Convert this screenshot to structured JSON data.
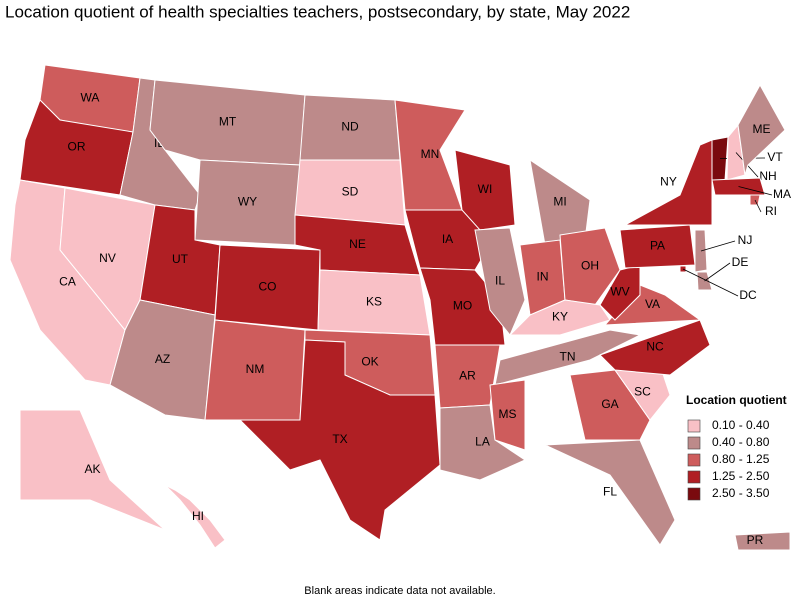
{
  "title": "Location quotient of health specialties teachers, postsecondary, by state, May 2022",
  "legend": {
    "title": "Location quotient",
    "items": [
      {
        "label": "0.10 - 0.40",
        "color": "#f9c0c6"
      },
      {
        "label": "0.40 - 0.80",
        "color": "#bd8a8a"
      },
      {
        "label": "0.80 - 1.25",
        "color": "#ce5c5c"
      },
      {
        "label": "1.25 - 2.50",
        "color": "#b01f24"
      },
      {
        "label": "2.50 - 3.50",
        "color": "#7a0a0e"
      }
    ]
  },
  "states": [
    {
      "label": "WA",
      "class": 2
    },
    {
      "label": "OR",
      "class": 3
    },
    {
      "label": "CA",
      "class": 0
    },
    {
      "label": "NV",
      "class": 0
    },
    {
      "label": "ID",
      "class": 1
    },
    {
      "label": "MT",
      "class": 1
    },
    {
      "label": "WY",
      "class": 1
    },
    {
      "label": "UT",
      "class": 3
    },
    {
      "label": "AZ",
      "class": 1
    },
    {
      "label": "CO",
      "class": 3
    },
    {
      "label": "NM",
      "class": 2
    },
    {
      "label": "ND",
      "class": 1
    },
    {
      "label": "SD",
      "class": 0
    },
    {
      "label": "NE",
      "class": 3
    },
    {
      "label": "KS",
      "class": 0
    },
    {
      "label": "OK",
      "class": 2
    },
    {
      "label": "TX",
      "class": 3
    },
    {
      "label": "MN",
      "class": 2
    },
    {
      "label": "IA",
      "class": 3
    },
    {
      "label": "MO",
      "class": 3
    },
    {
      "label": "AR",
      "class": 2
    },
    {
      "label": "LA",
      "class": 1
    },
    {
      "label": "WI",
      "class": 3
    },
    {
      "label": "IL",
      "class": 1
    },
    {
      "label": "MI",
      "class": 1
    },
    {
      "label": "IN",
      "class": 2
    },
    {
      "label": "OH",
      "class": 2
    },
    {
      "label": "KY",
      "class": 0
    },
    {
      "label": "TN",
      "class": 1
    },
    {
      "label": "MS",
      "class": 2
    },
    {
      "label": "GA",
      "class": 2
    },
    {
      "label": "FL",
      "class": 1
    },
    {
      "label": "SC",
      "class": 0
    },
    {
      "label": "NC",
      "class": 3
    },
    {
      "label": "VA",
      "class": 2
    },
    {
      "label": "WV",
      "class": 3
    },
    {
      "label": "PA",
      "class": 3
    },
    {
      "label": "NY",
      "class": 3
    },
    {
      "label": "VT",
      "class": 4
    },
    {
      "label": "NH",
      "class": 0
    },
    {
      "label": "ME",
      "class": 1
    },
    {
      "label": "MA",
      "class": 3
    },
    {
      "label": "RI",
      "class": 2
    },
    {
      "label": "NJ",
      "class": 1
    },
    {
      "label": "DE",
      "class": 1
    },
    {
      "label": "DC",
      "class": 3
    },
    {
      "label": "AK",
      "class": 0
    },
    {
      "label": "HI",
      "class": 0
    },
    {
      "label": "PR",
      "class": 1
    }
  ],
  "footnote": "Blank areas indicate data not available."
}
